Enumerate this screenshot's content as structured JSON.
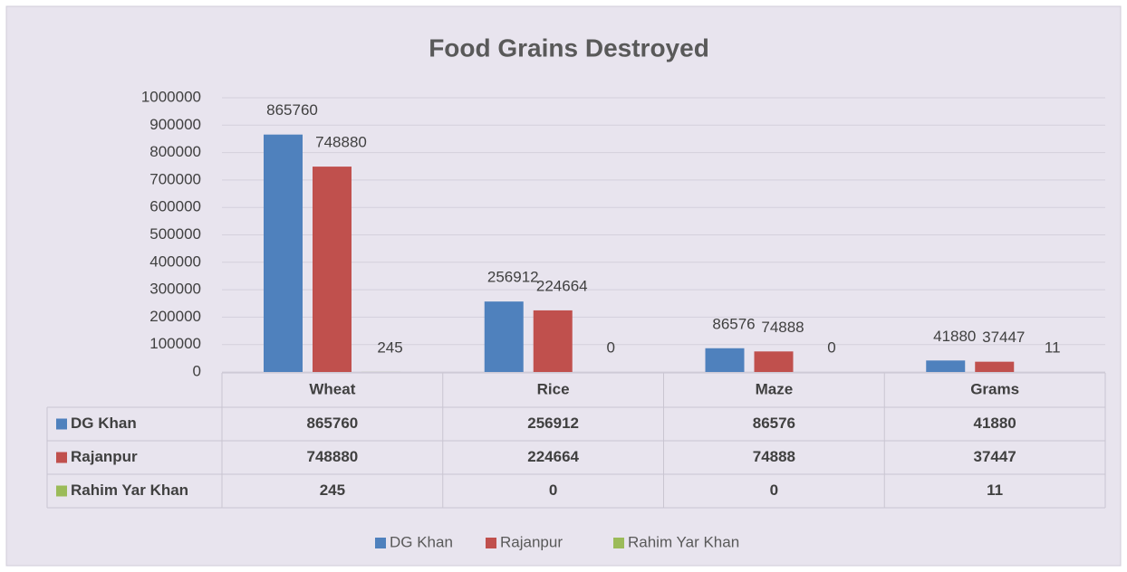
{
  "chart_data": {
    "type": "bar",
    "title": "Food Grains Destroyed",
    "categories": [
      "Wheat",
      "Rice",
      "Maze",
      "Grams"
    ],
    "series": [
      {
        "name": "DG Khan",
        "color": "#4f81bd",
        "values": [
          865760,
          256912,
          86576,
          41880
        ]
      },
      {
        "name": "Rajanpur",
        "color": "#c0504d",
        "values": [
          748880,
          224664,
          74888,
          37447
        ]
      },
      {
        "name": "Rahim Yar Khan",
        "color": "#9bbb59",
        "values": [
          245,
          0,
          0,
          11
        ]
      }
    ],
    "ylim": [
      0,
      1000000
    ],
    "yticks": [
      0,
      100000,
      200000,
      300000,
      400000,
      500000,
      600000,
      700000,
      800000,
      900000,
      1000000
    ],
    "grid": true,
    "legend": "bottom"
  }
}
